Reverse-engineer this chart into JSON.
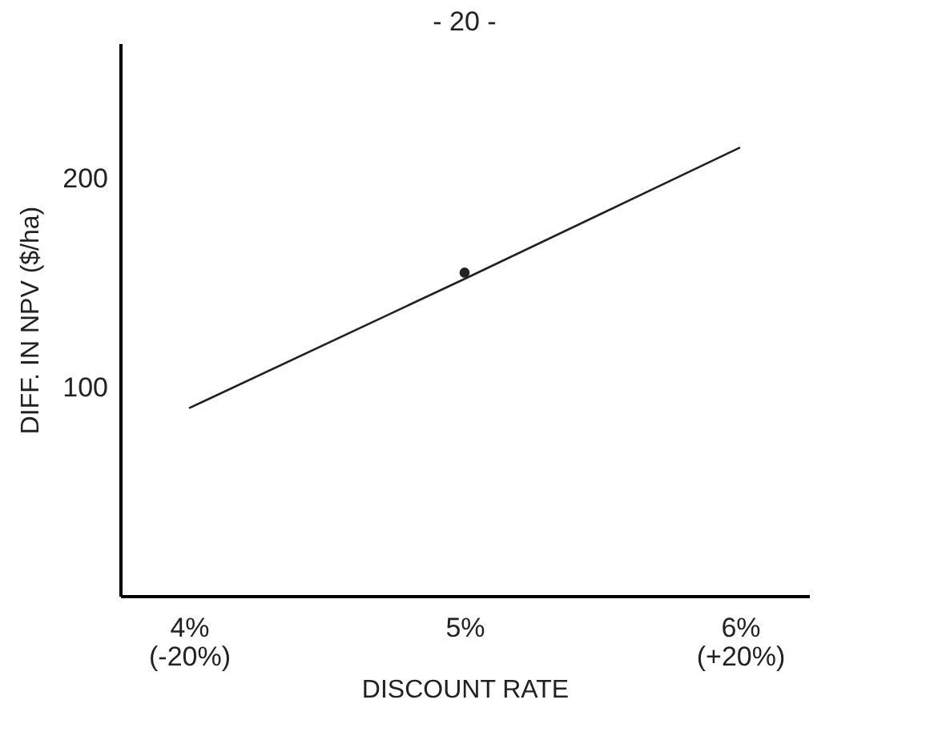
{
  "chart_data": {
    "type": "line",
    "xlabel": "DISCOUNT RATE",
    "ylabel": "DIFF. IN NPV  ($/ha)",
    "annotations": [
      "- 20 -"
    ],
    "categories": [
      "4%\n(-20%)",
      "5%",
      "6%\n(+20%)"
    ],
    "ylim": [
      0,
      265
    ],
    "yticks": [
      100,
      200
    ],
    "grid": false,
    "series": [
      {
        "color": "#222222",
        "values": [
          90,
          152,
          215
        ]
      },
      {
        "type": "scatter",
        "color": "#222222",
        "x": [
          "5%"
        ],
        "values": [
          155
        ]
      }
    ]
  }
}
